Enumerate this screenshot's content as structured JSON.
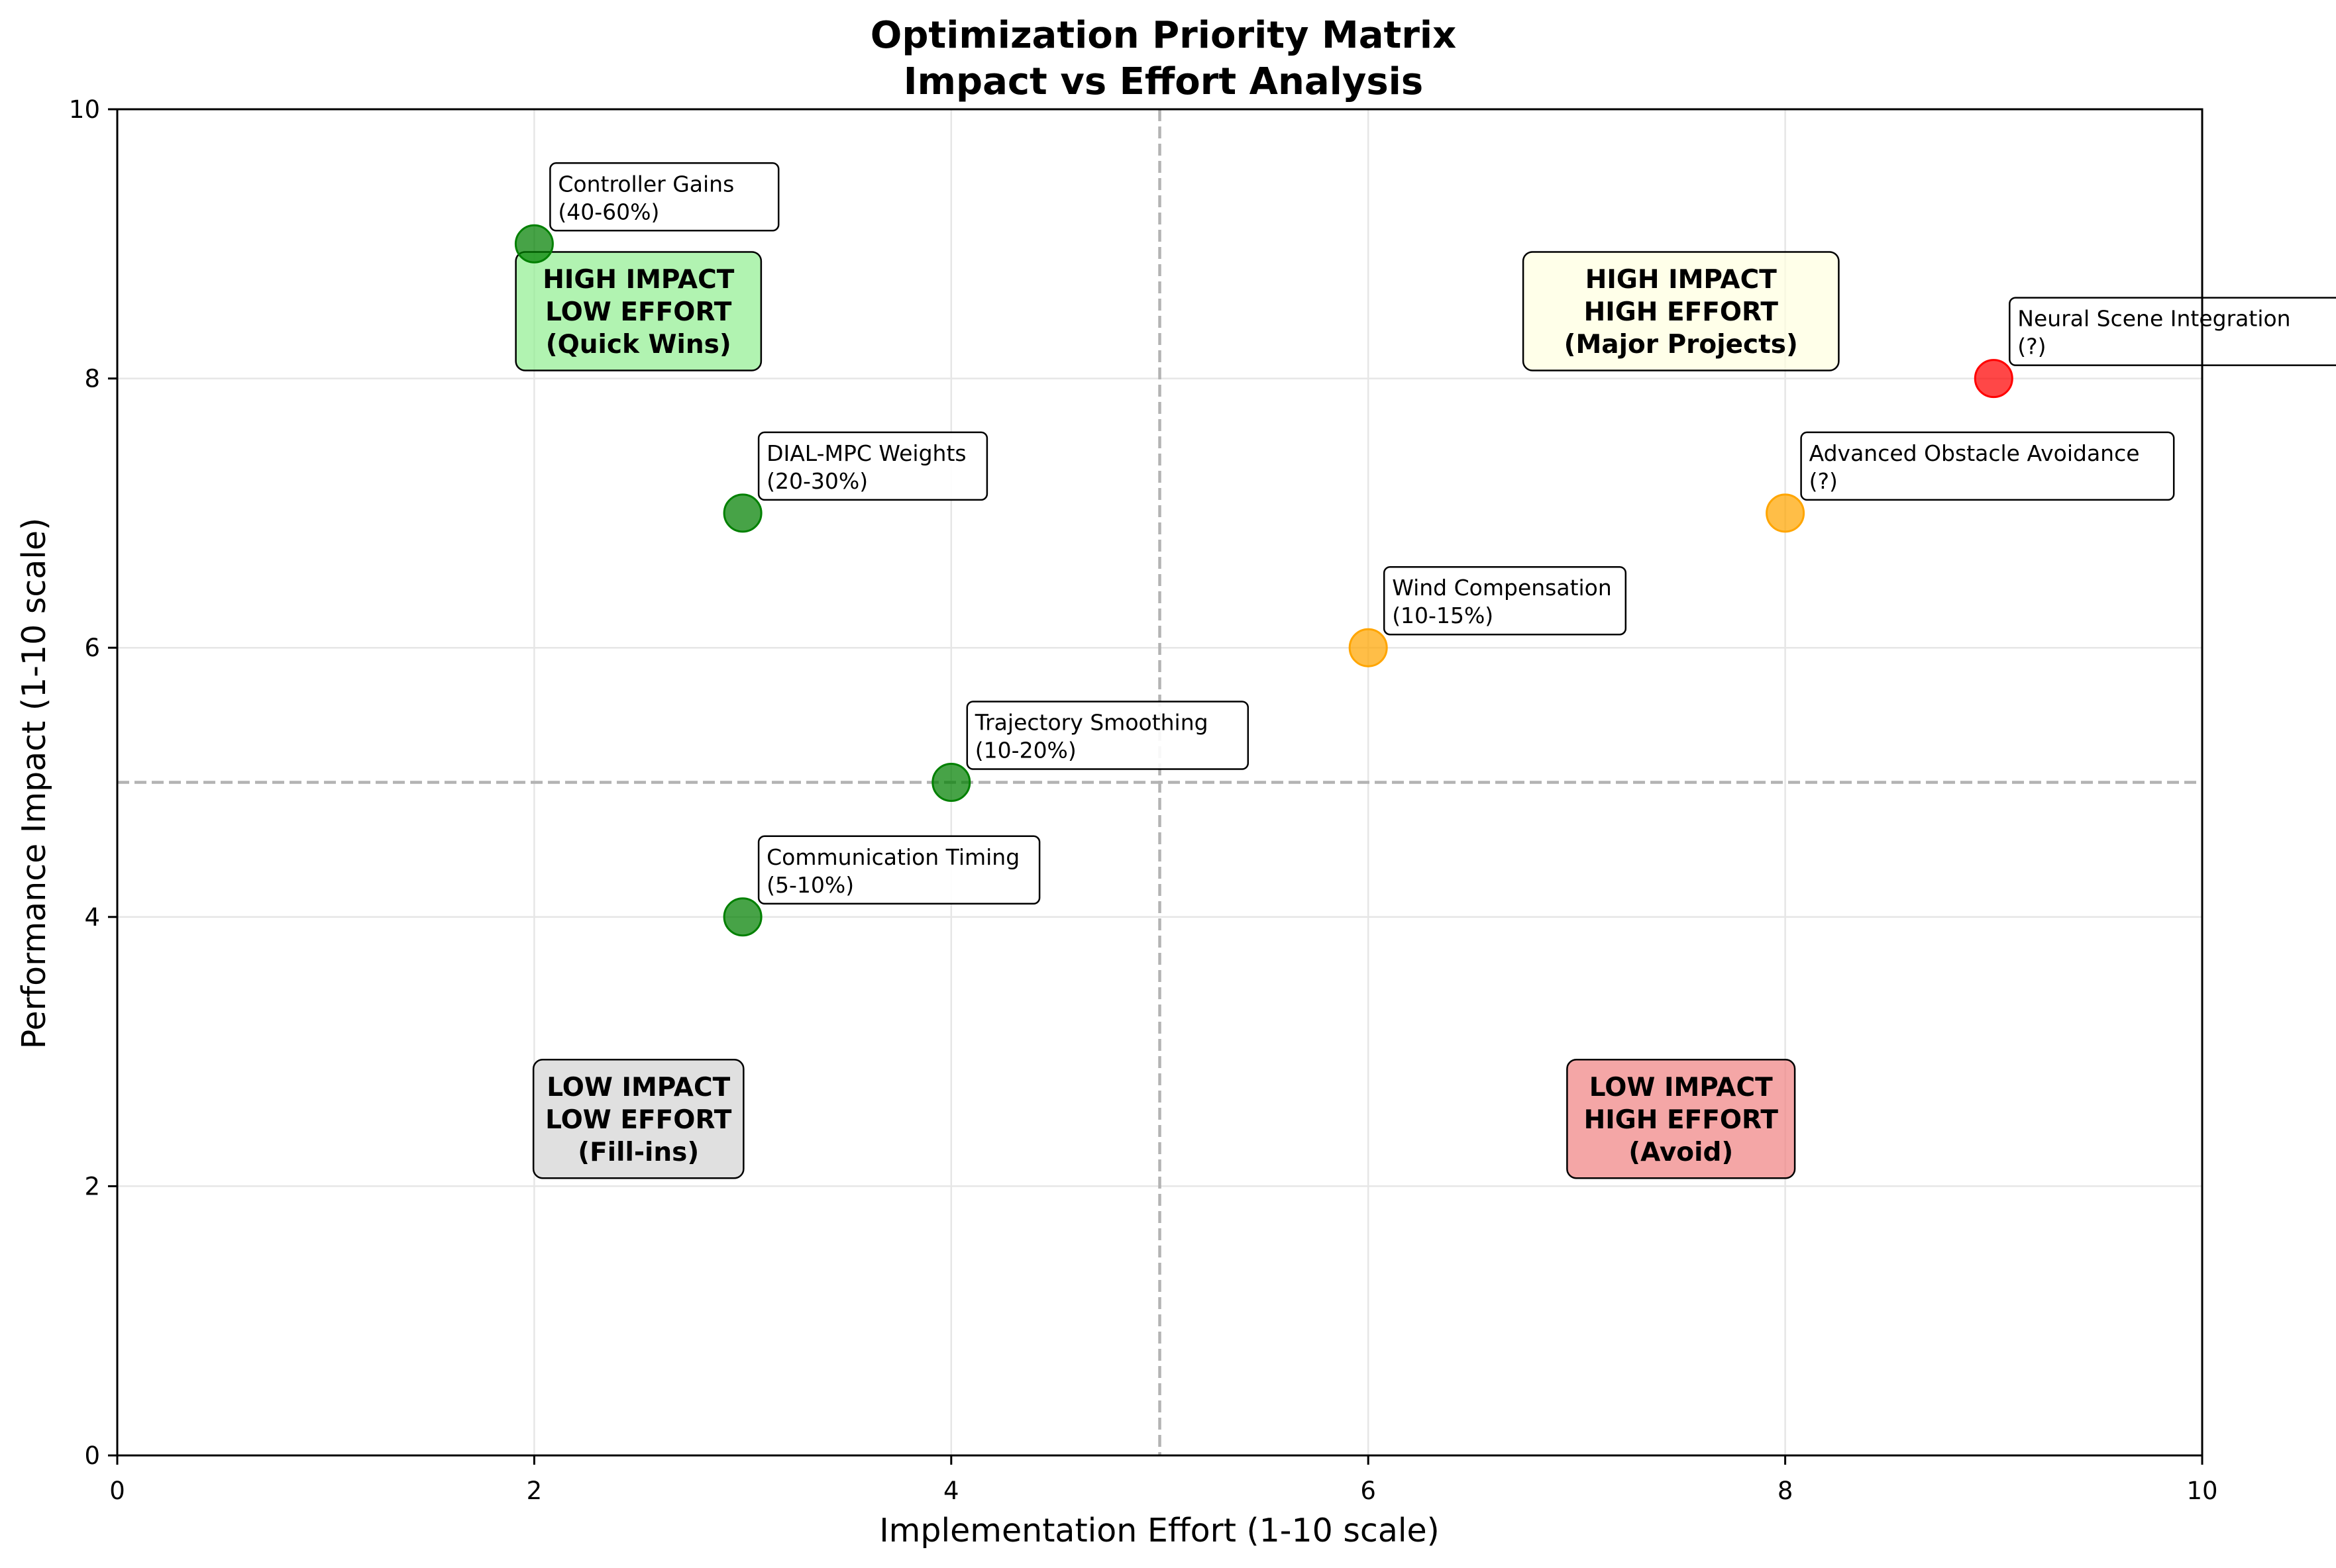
{
  "chart_data": {
    "type": "scatter",
    "title": "Optimization Priority Matrix",
    "subtitle": "Impact vs Effort Analysis",
    "xlabel": "Implementation Effort (1-10 scale)",
    "ylabel": "Performance Impact (1-10 scale)",
    "xlim": [
      0,
      10
    ],
    "ylim": [
      0,
      10
    ],
    "xticks": [
      0,
      2,
      4,
      6,
      8,
      10
    ],
    "yticks": [
      0,
      2,
      4,
      6,
      8,
      10
    ],
    "grid": true,
    "threshold_lines": {
      "x": 5,
      "y": 5
    },
    "colors": {
      "green": "#008000",
      "orange": "#FFA500",
      "red": "#FF0000",
      "gridline": "#e6e6e6",
      "threshold": "#b3b3b3"
    },
    "points": [
      {
        "name": "Controller Gains",
        "detail": "(40-60%)",
        "x": 2,
        "y": 9,
        "color": "green"
      },
      {
        "name": "DIAL-MPC Weights",
        "detail": "(20-30%)",
        "x": 3,
        "y": 7,
        "color": "green"
      },
      {
        "name": "Trajectory Smoothing",
        "detail": "(10-20%)",
        "x": 4,
        "y": 5,
        "color": "green"
      },
      {
        "name": "Communication Timing",
        "detail": "(5-10%)",
        "x": 3,
        "y": 4,
        "color": "green"
      },
      {
        "name": "Wind Compensation",
        "detail": "(10-15%)",
        "x": 6,
        "y": 6,
        "color": "orange"
      },
      {
        "name": "Advanced Obstacle Avoidance",
        "detail": "(?)",
        "x": 8,
        "y": 7,
        "color": "orange"
      },
      {
        "name": "Neural Scene Integration",
        "detail": "(?)",
        "x": 9,
        "y": 8,
        "color": "red"
      }
    ],
    "quadrants": [
      {
        "lines": [
          "HIGH IMPACT",
          "LOW EFFORT",
          "(Quick Wins)"
        ],
        "x": 2.5,
        "y": 8.5,
        "fill": "#90EE90"
      },
      {
        "lines": [
          "HIGH IMPACT",
          "HIGH EFFORT",
          "(Major Projects)"
        ],
        "x": 7.5,
        "y": 8.5,
        "fill": "#FFFFE0"
      },
      {
        "lines": [
          "LOW IMPACT",
          "LOW EFFORT",
          "(Fill-ins)"
        ],
        "x": 2.5,
        "y": 2.5,
        "fill": "#D3D3D3"
      },
      {
        "lines": [
          "LOW IMPACT",
          "HIGH EFFORT",
          "(Avoid)"
        ],
        "x": 7.5,
        "y": 2.5,
        "fill": "#F08080"
      }
    ]
  }
}
